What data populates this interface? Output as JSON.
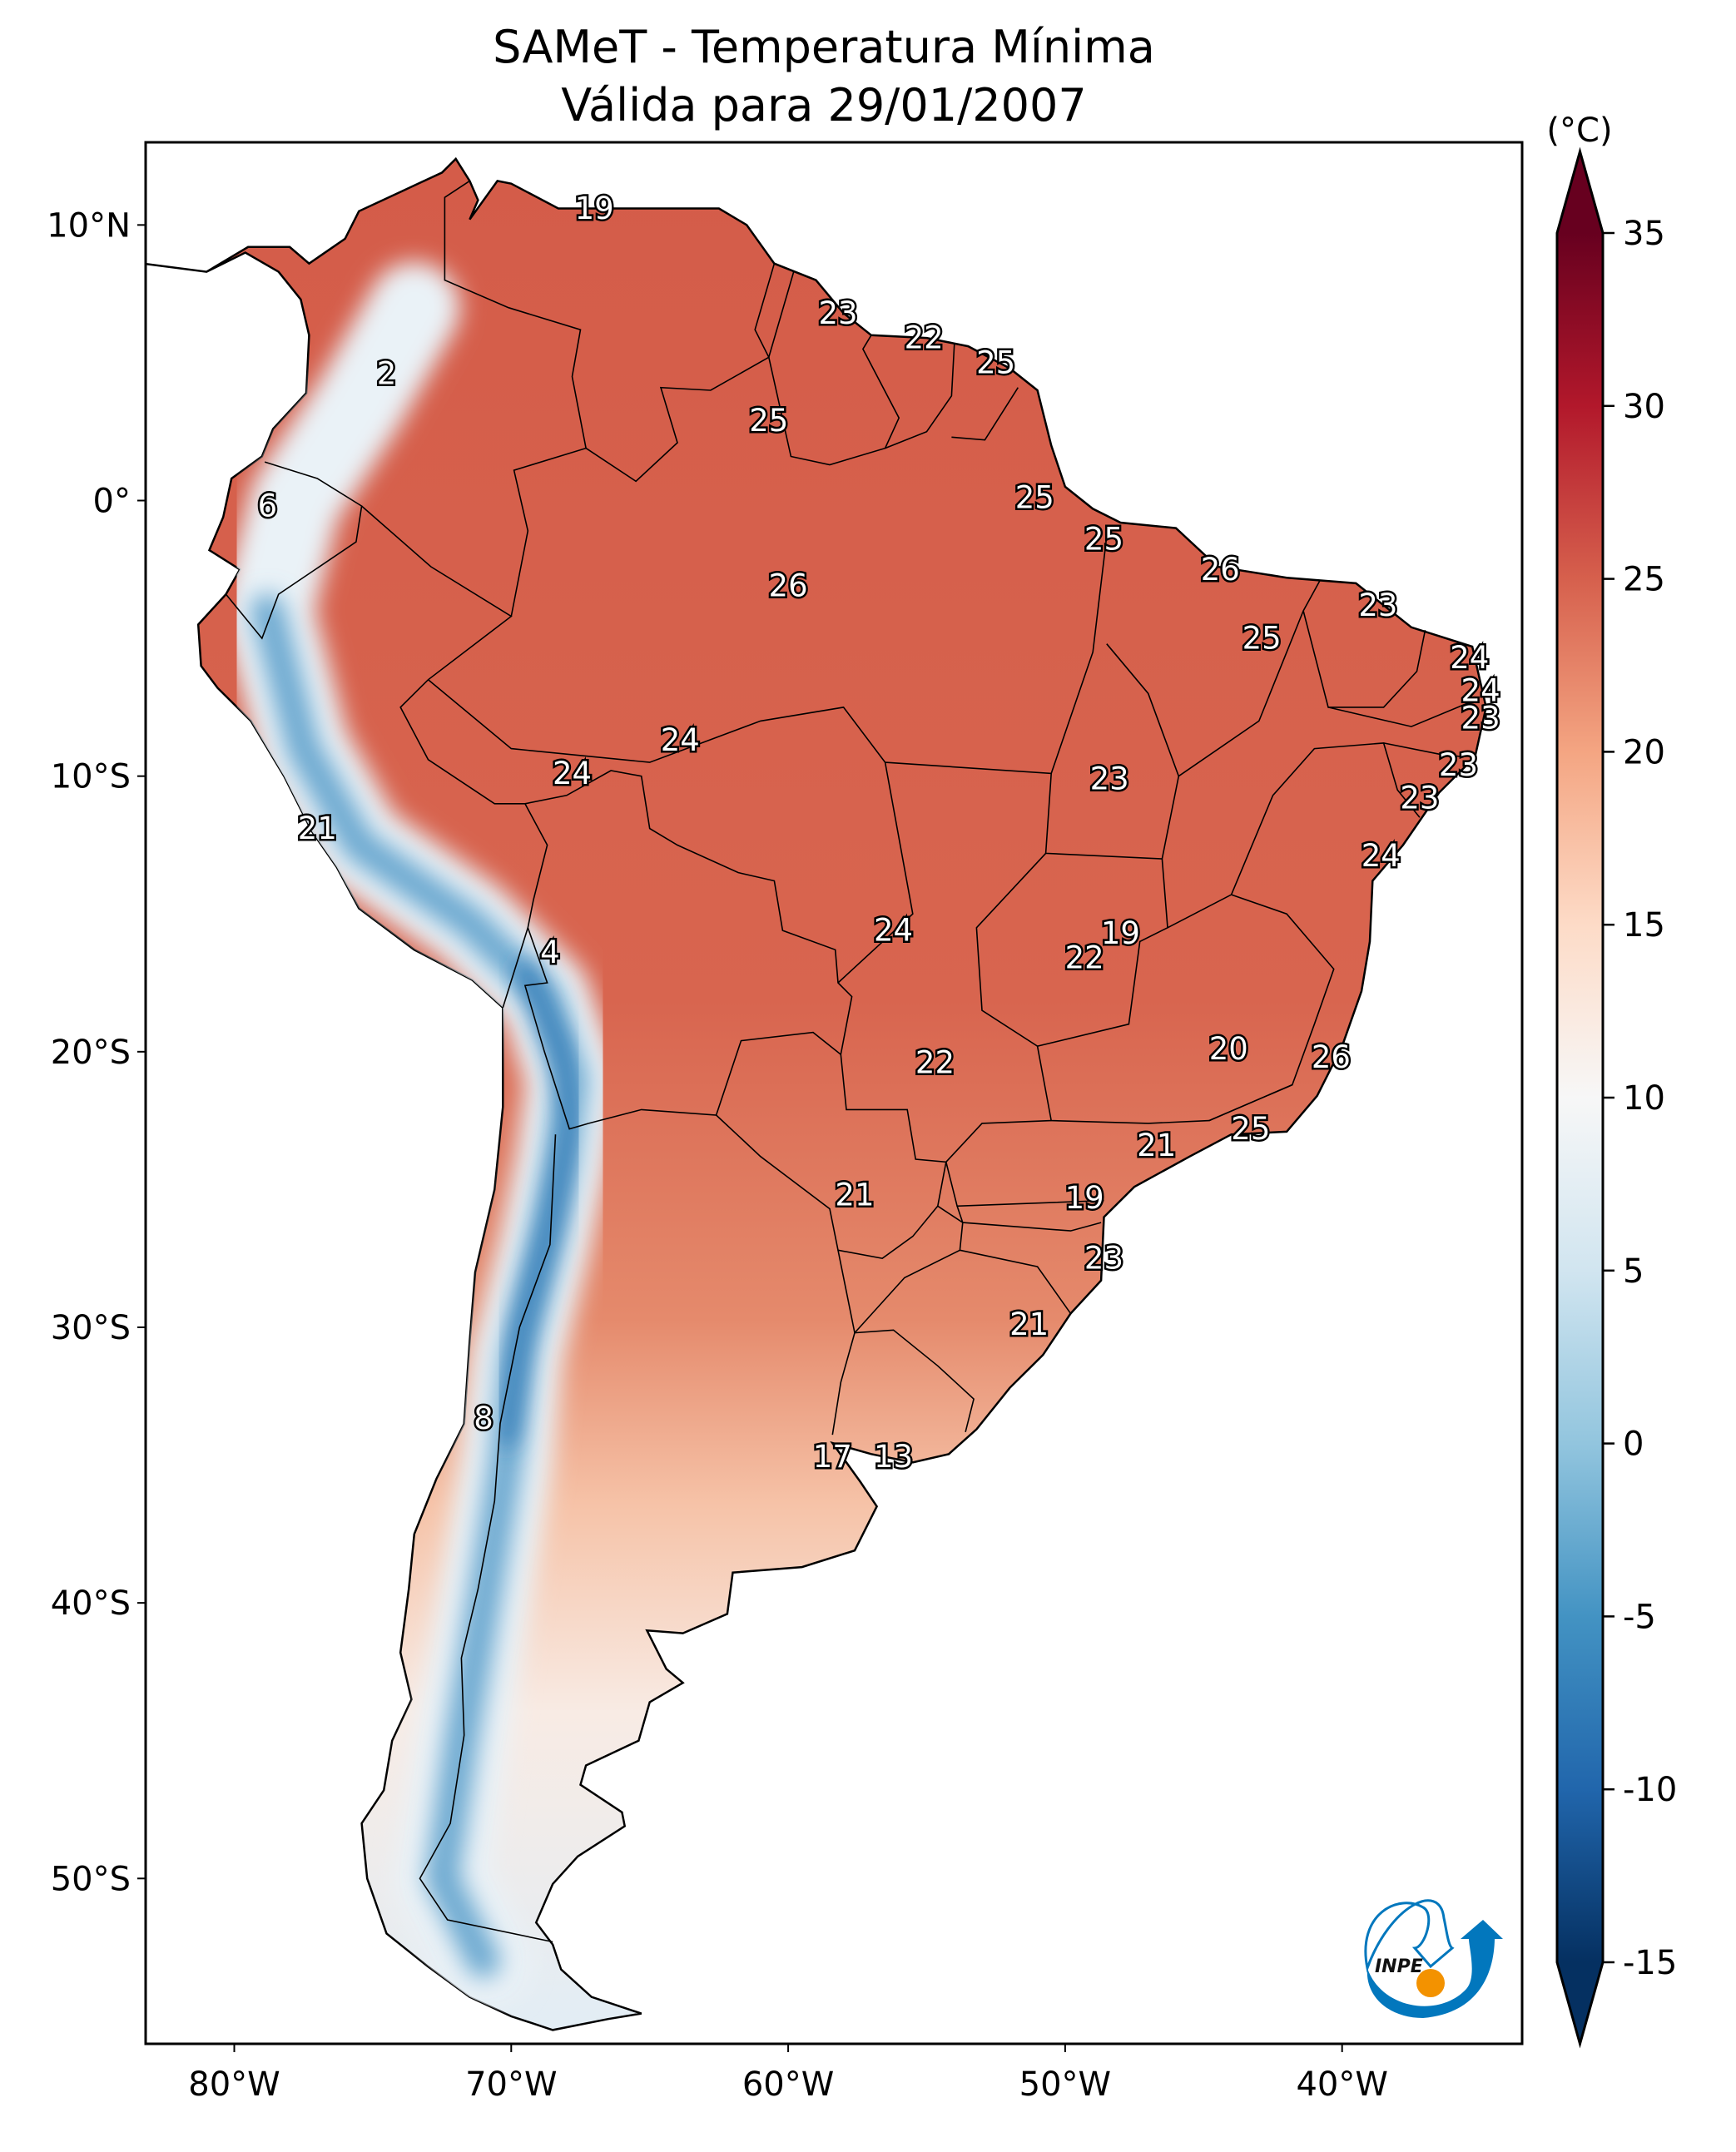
{
  "title": {
    "line1": "SAMeT - Temperatura Mínima",
    "line2": "Válida para 29/01/2007"
  },
  "colorbar": {
    "unit_label": "(°C)",
    "ticks": [
      35,
      30,
      25,
      20,
      15,
      10,
      5,
      0,
      -5,
      -10,
      -15
    ],
    "tick_labels": [
      "35",
      "30",
      "25",
      "20",
      "15",
      "10",
      "5",
      "0",
      "-5",
      "-10",
      "-15"
    ],
    "range": [
      -15,
      35
    ],
    "extend": "both",
    "colormap": "RdBu_r",
    "colors": [
      {
        "v": 35,
        "c": "#67001f"
      },
      {
        "v": 30,
        "c": "#b2182b"
      },
      {
        "v": 25,
        "c": "#d6604d"
      },
      {
        "v": 20,
        "c": "#f4a582"
      },
      {
        "v": 15,
        "c": "#fddbc7"
      },
      {
        "v": 10,
        "c": "#f7f7f7"
      },
      {
        "v": 5,
        "c": "#d1e5f0"
      },
      {
        "v": 0,
        "c": "#92c5de"
      },
      {
        "v": -5,
        "c": "#4393c3"
      },
      {
        "v": -10,
        "c": "#2166ac"
      },
      {
        "v": -15,
        "c": "#053061"
      }
    ]
  },
  "map": {
    "extent": {
      "lon": [
        -83.2,
        -33.5
      ],
      "lat": [
        13.0,
        -56.0
      ]
    },
    "x_ticks": [
      {
        "lon": -80,
        "label": "80°W"
      },
      {
        "lon": -70,
        "label": "70°W"
      },
      {
        "lon": -60,
        "label": "60°W"
      },
      {
        "lon": -50,
        "label": "50°W"
      },
      {
        "lon": -40,
        "label": "40°W"
      }
    ],
    "y_ticks": [
      {
        "lat": 10,
        "label": "10°N"
      },
      {
        "lat": 0,
        "label": "0°"
      },
      {
        "lat": -10,
        "label": "10°S"
      },
      {
        "lat": -20,
        "label": "20°S"
      },
      {
        "lat": -30,
        "label": "30°S"
      },
      {
        "lat": -40,
        "label": "40°S"
      },
      {
        "lat": -50,
        "label": "50°S"
      }
    ],
    "station_labels": [
      {
        "t": "19",
        "lon": -67.0,
        "lat": 10.6
      },
      {
        "t": "23",
        "lon": -58.2,
        "lat": 6.8
      },
      {
        "t": "22",
        "lon": -55.1,
        "lat": 5.9
      },
      {
        "t": "25",
        "lon": -52.5,
        "lat": 5.0
      },
      {
        "t": "2",
        "lon": -74.5,
        "lat": 4.6
      },
      {
        "t": "25",
        "lon": -60.7,
        "lat": 2.9
      },
      {
        "t": "6",
        "lon": -78.8,
        "lat": -0.2
      },
      {
        "t": "25",
        "lon": -51.1,
        "lat": 0.1
      },
      {
        "t": "25",
        "lon": -48.6,
        "lat": -1.4
      },
      {
        "t": "26",
        "lon": -44.4,
        "lat": -2.5
      },
      {
        "t": "26",
        "lon": -60.0,
        "lat": -3.1
      },
      {
        "t": "23",
        "lon": -38.7,
        "lat": -3.8
      },
      {
        "t": "25",
        "lon": -42.9,
        "lat": -5.0
      },
      {
        "t": "24",
        "lon": -35.4,
        "lat": -5.7
      },
      {
        "t": "24",
        "lon": -35.0,
        "lat": -6.9
      },
      {
        "t": "23",
        "lon": -35.0,
        "lat": -7.9
      },
      {
        "t": "24",
        "lon": -63.9,
        "lat": -8.7
      },
      {
        "t": "23",
        "lon": -35.8,
        "lat": -9.6
      },
      {
        "t": "24",
        "lon": -67.8,
        "lat": -9.9
      },
      {
        "t": "23",
        "lon": -48.4,
        "lat": -10.1
      },
      {
        "t": "23",
        "lon": -37.2,
        "lat": -10.8
      },
      {
        "t": "21",
        "lon": -77.0,
        "lat": -11.9
      },
      {
        "t": "24",
        "lon": -38.6,
        "lat": -12.9
      },
      {
        "t": "24",
        "lon": -56.2,
        "lat": -15.6
      },
      {
        "t": "19",
        "lon": -48.0,
        "lat": -15.7
      },
      {
        "t": "4",
        "lon": -68.6,
        "lat": -16.4
      },
      {
        "t": "22",
        "lon": -49.3,
        "lat": -16.6
      },
      {
        "t": "20",
        "lon": -44.1,
        "lat": -19.9
      },
      {
        "t": "26",
        "lon": -40.4,
        "lat": -20.2
      },
      {
        "t": "22",
        "lon": -54.7,
        "lat": -20.4
      },
      {
        "t": "25",
        "lon": -43.3,
        "lat": -22.8
      },
      {
        "t": "21",
        "lon": -46.7,
        "lat": -23.4
      },
      {
        "t": "21",
        "lon": -57.6,
        "lat": -25.2
      },
      {
        "t": "19",
        "lon": -49.3,
        "lat": -25.3
      },
      {
        "t": "23",
        "lon": -48.6,
        "lat": -27.5
      },
      {
        "t": "21",
        "lon": -51.3,
        "lat": -29.9
      },
      {
        "t": "8",
        "lon": -71.0,
        "lat": -33.3
      },
      {
        "t": "17",
        "lon": -58.4,
        "lat": -34.7
      },
      {
        "t": "13",
        "lon": -56.2,
        "lat": -34.7
      }
    ]
  },
  "logo": {
    "text": "INPE",
    "blue": "#0277bd",
    "orange": "#f39200"
  }
}
